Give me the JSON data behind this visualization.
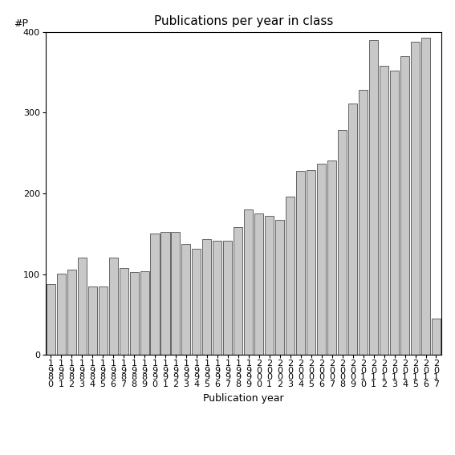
{
  "title": "Publications per year in class",
  "xlabel": "Publication year",
  "ylabel": "#P",
  "years": [
    "1980",
    "1981",
    "1982",
    "1983",
    "1984",
    "1985",
    "1986",
    "1987",
    "1988",
    "1989",
    "1990",
    "1991",
    "1992",
    "1993",
    "1994",
    "1995",
    "1996",
    "1997",
    "1998",
    "1999",
    "2000",
    "2001",
    "2002",
    "2003",
    "2004",
    "2005",
    "2006",
    "2007",
    "2008",
    "2009",
    "2010",
    "2011",
    "2012",
    "2013",
    "2014",
    "2015",
    "2016",
    "2017"
  ],
  "values": [
    88,
    101,
    106,
    120,
    85,
    85,
    120,
    108,
    103,
    104,
    150,
    152,
    152,
    137,
    131,
    143,
    141,
    141,
    158,
    180,
    175,
    172,
    167,
    196,
    228,
    229,
    237,
    241,
    278,
    311,
    328,
    390,
    358,
    352,
    370,
    388,
    393,
    45
  ],
  "bar_color": "#c8c8c8",
  "bar_edgecolor": "#333333",
  "background_color": "#ffffff",
  "ylim": [
    0,
    400
  ],
  "yticks": [
    0,
    100,
    200,
    300,
    400
  ],
  "title_fontsize": 11,
  "label_fontsize": 9,
  "tick_fontsize": 8
}
